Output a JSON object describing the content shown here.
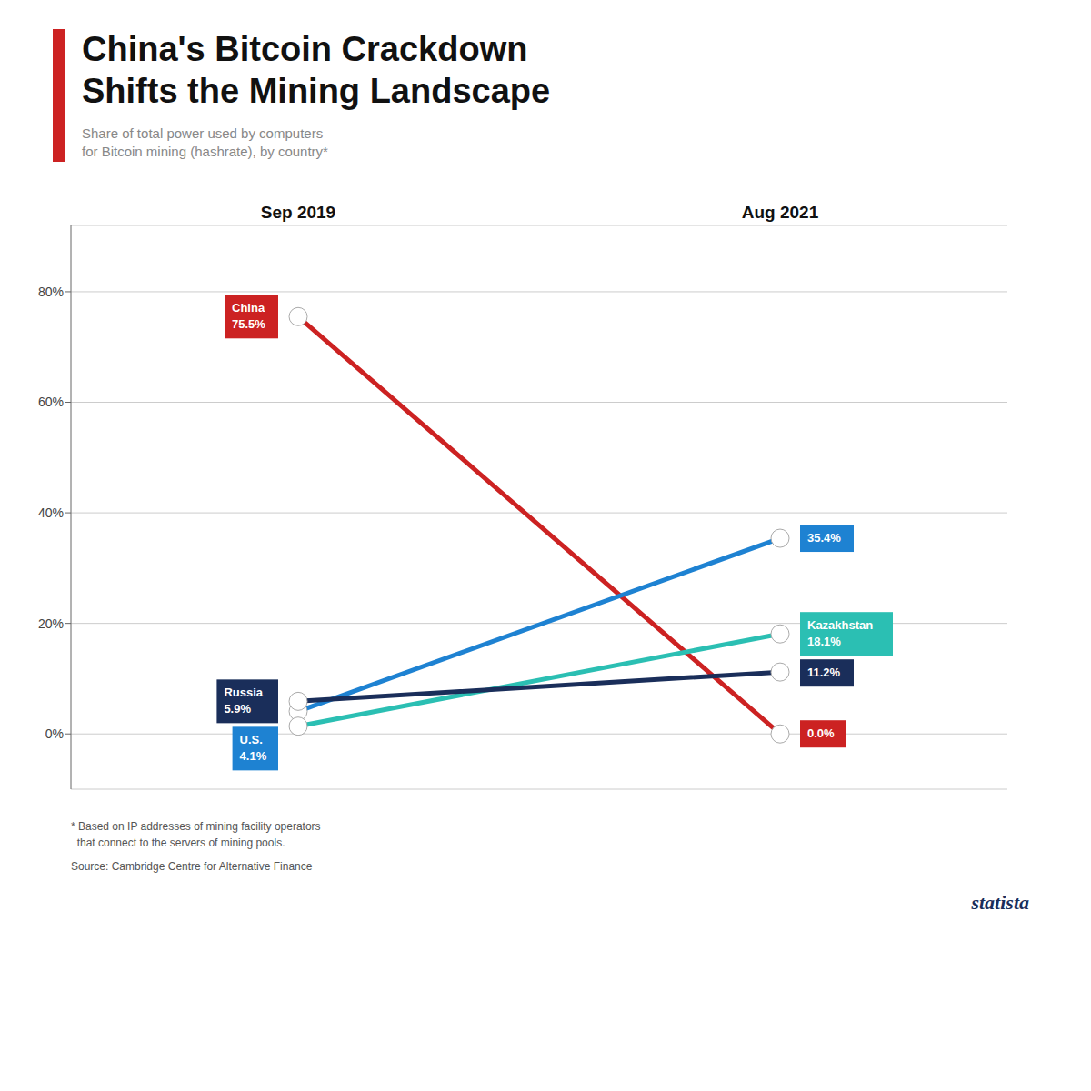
{
  "chart_data": {
    "type": "line",
    "title": "China's Bitcoin Crackdown\nShifts the Mining Landscape",
    "subtitle": "Share of total power used by computers\nfor Bitcoin mining (hashrate), by country*",
    "categories": [
      "Sep 2019",
      "Aug 2021"
    ],
    "series": [
      {
        "name": "China",
        "color": "#cc2222",
        "values": [
          75.5,
          0.0
        ],
        "value_labels": [
          "China\n75.5%",
          "0.0%"
        ]
      },
      {
        "name": "U.S.",
        "color": "#1e82d2",
        "values": [
          4.1,
          35.4
        ],
        "value_labels": [
          "U.S.\n4.1%",
          "35.4%"
        ]
      },
      {
        "name": "Kazakhstan",
        "color": "#2bbfb3",
        "values": [
          1.4,
          18.1
        ],
        "value_labels": [
          null,
          "Kazakhstan\n18.1%"
        ]
      },
      {
        "name": "Russia",
        "color": "#1a2e5a",
        "values": [
          5.9,
          11.2
        ],
        "value_labels": [
          "Russia\n5.9%",
          "11.2%"
        ]
      }
    ],
    "ylim": [
      -10,
      92
    ],
    "yticks": [
      {
        "value": 0,
        "label": "0%"
      },
      {
        "value": 20,
        "label": "20%"
      },
      {
        "value": 40,
        "label": "40%"
      },
      {
        "value": 60,
        "label": "60%"
      },
      {
        "value": 80,
        "label": "80%"
      }
    ],
    "grid": true,
    "data_labels": true,
    "marker": "circle",
    "annotations": [
      "* Based on IP addresses of mining facility operators",
      "  that connect to the servers of mining pools.",
      "Source: Cambridge Centre for Alternative Finance",
      "statista"
    ]
  }
}
